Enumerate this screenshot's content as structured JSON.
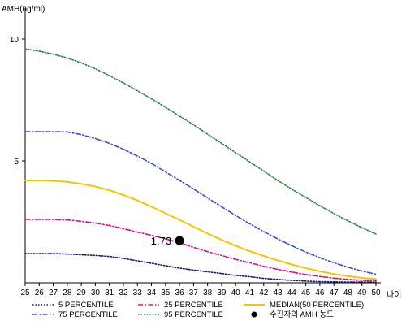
{
  "chart_data": {
    "type": "line",
    "ylabel": "AMH(ng/ml)",
    "xlabel": "나이",
    "xlim": [
      25,
      50
    ],
    "ylim": [
      0,
      11
    ],
    "x_ticks": [
      25,
      26,
      27,
      28,
      29,
      30,
      31,
      32,
      33,
      34,
      35,
      36,
      37,
      38,
      39,
      40,
      41,
      42,
      43,
      44,
      45,
      46,
      47,
      48,
      49,
      50
    ],
    "y_ticks": [
      5,
      10
    ],
    "grid": false,
    "legend_position": "bottom",
    "series": [
      {
        "name": "5 PERCENTILE",
        "color": "#1a1a66",
        "dash": "dotted",
        "points": [
          [
            25,
            1.2
          ],
          [
            27,
            1.2
          ],
          [
            28,
            1.18
          ],
          [
            29,
            1.15
          ],
          [
            30,
            1.12
          ],
          [
            31,
            1.08
          ],
          [
            32,
            1.0
          ],
          [
            33,
            0.9
          ],
          [
            34,
            0.8
          ],
          [
            35,
            0.7
          ],
          [
            36,
            0.6
          ],
          [
            37,
            0.52
          ],
          [
            38,
            0.45
          ],
          [
            39,
            0.38
          ],
          [
            40,
            0.3
          ],
          [
            41,
            0.25
          ],
          [
            42,
            0.18
          ],
          [
            43,
            0.14
          ],
          [
            44,
            0.1
          ],
          [
            45,
            0.07
          ],
          [
            46,
            0.05
          ],
          [
            47,
            0.04
          ],
          [
            48,
            0.03
          ],
          [
            49,
            0.03
          ],
          [
            50,
            0.03
          ]
        ]
      },
      {
        "name": "25 PERCENTILE",
        "color": "#e0107f",
        "dash": "dashdot",
        "points": [
          [
            25,
            2.6
          ],
          [
            26,
            2.6
          ],
          [
            27,
            2.6
          ],
          [
            28,
            2.58
          ],
          [
            29,
            2.52
          ],
          [
            30,
            2.45
          ],
          [
            31,
            2.35
          ],
          [
            32,
            2.22
          ],
          [
            33,
            2.08
          ],
          [
            34,
            1.95
          ],
          [
            35,
            1.8
          ],
          [
            36,
            1.65
          ],
          [
            37,
            1.45
          ],
          [
            38,
            1.28
          ],
          [
            39,
            1.12
          ],
          [
            40,
            0.96
          ],
          [
            41,
            0.82
          ],
          [
            42,
            0.68
          ],
          [
            43,
            0.55
          ],
          [
            44,
            0.44
          ],
          [
            45,
            0.34
          ],
          [
            46,
            0.26
          ],
          [
            47,
            0.19
          ],
          [
            48,
            0.14
          ],
          [
            49,
            0.1
          ],
          [
            50,
            0.08
          ]
        ]
      },
      {
        "name": "MEDIAN(50 PERCENTILE)",
        "color": "#f0c800",
        "dash": "solid",
        "points": [
          [
            25,
            4.2
          ],
          [
            26,
            4.2
          ],
          [
            27,
            4.18
          ],
          [
            28,
            4.14
          ],
          [
            29,
            4.06
          ],
          [
            30,
            3.95
          ],
          [
            31,
            3.8
          ],
          [
            32,
            3.6
          ],
          [
            33,
            3.38
          ],
          [
            34,
            3.12
          ],
          [
            35,
            2.85
          ],
          [
            36,
            2.58
          ],
          [
            37,
            2.3
          ],
          [
            38,
            2.02
          ],
          [
            39,
            1.76
          ],
          [
            40,
            1.52
          ],
          [
            41,
            1.3
          ],
          [
            42,
            1.1
          ],
          [
            43,
            0.92
          ],
          [
            44,
            0.75
          ],
          [
            45,
            0.6
          ],
          [
            46,
            0.47
          ],
          [
            47,
            0.36
          ],
          [
            48,
            0.27
          ],
          [
            49,
            0.2
          ],
          [
            50,
            0.15
          ]
        ]
      },
      {
        "name": "75 PERCENTILE",
        "color": "#3c50c8",
        "dash": "dashdot",
        "points": [
          [
            25,
            6.2
          ],
          [
            26,
            6.2
          ],
          [
            27,
            6.2
          ],
          [
            28,
            6.19
          ],
          [
            29,
            6.08
          ],
          [
            30,
            5.92
          ],
          [
            31,
            5.72
          ],
          [
            32,
            5.48
          ],
          [
            33,
            5.2
          ],
          [
            34,
            4.9
          ],
          [
            35,
            4.55
          ],
          [
            36,
            4.2
          ],
          [
            37,
            3.85
          ],
          [
            38,
            3.48
          ],
          [
            39,
            3.12
          ],
          [
            40,
            2.76
          ],
          [
            41,
            2.42
          ],
          [
            42,
            2.1
          ],
          [
            43,
            1.8
          ],
          [
            44,
            1.52
          ],
          [
            45,
            1.26
          ],
          [
            46,
            1.03
          ],
          [
            47,
            0.82
          ],
          [
            48,
            0.64
          ],
          [
            49,
            0.48
          ],
          [
            50,
            0.35
          ]
        ]
      },
      {
        "name": "95 PERCENTILE",
        "color": "#2e7d4f",
        "dash": "dotted",
        "points": [
          [
            25,
            9.6
          ],
          [
            26,
            9.5
          ],
          [
            27,
            9.38
          ],
          [
            28,
            9.22
          ],
          [
            29,
            9.02
          ],
          [
            30,
            8.78
          ],
          [
            31,
            8.5
          ],
          [
            32,
            8.2
          ],
          [
            33,
            7.88
          ],
          [
            34,
            7.55
          ],
          [
            35,
            7.2
          ],
          [
            36,
            6.84
          ],
          [
            37,
            6.48
          ],
          [
            38,
            6.1
          ],
          [
            39,
            5.72
          ],
          [
            40,
            5.34
          ],
          [
            41,
            4.96
          ],
          [
            42,
            4.58
          ],
          [
            43,
            4.2
          ],
          [
            44,
            3.84
          ],
          [
            45,
            3.5
          ],
          [
            46,
            3.16
          ],
          [
            47,
            2.84
          ],
          [
            48,
            2.54
          ],
          [
            49,
            2.26
          ],
          [
            50,
            2.0
          ]
        ]
      }
    ],
    "marker": {
      "name": "수진자의 AMH 농도",
      "x": 36,
      "y": 1.73,
      "label": "1.73",
      "color": "#000000"
    },
    "legend_order": [
      "5 PERCENTILE",
      "25 PERCENTILE",
      "MEDIAN(50 PERCENTILE)",
      "75 PERCENTILE",
      "95 PERCENTILE",
      "수진자의 AMH 농도"
    ]
  }
}
